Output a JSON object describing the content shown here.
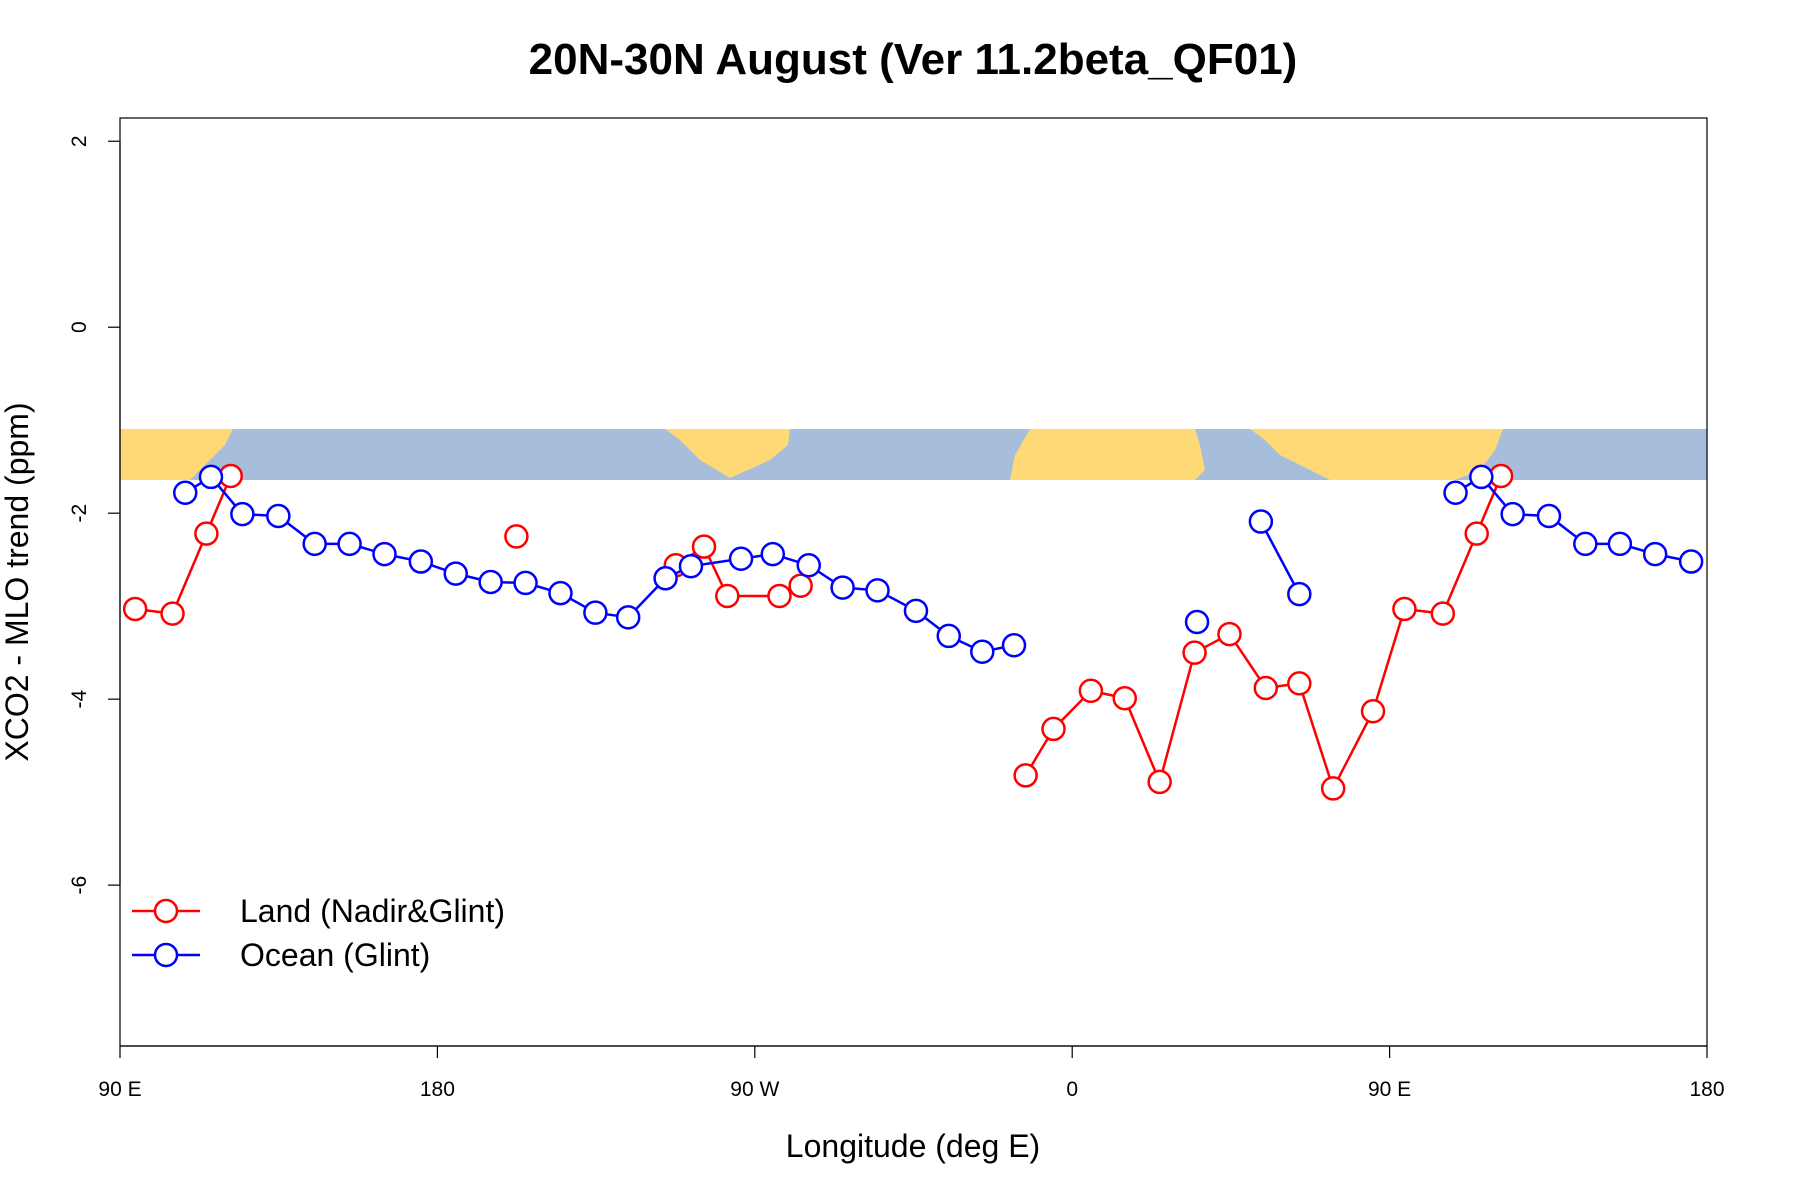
{
  "chart_data": {
    "type": "line",
    "title": "20N-30N August (Ver 11.2beta_QF01)",
    "xlabel": "Longitude (deg E)",
    "ylabel": "XCO2 - MLO trend (ppm)",
    "xlim": [
      90,
      540
    ],
    "ylim": [
      -7.73,
      2.25
    ],
    "xticks": [
      {
        "value": 90,
        "label": "90 E"
      },
      180,
      {
        "value": 270,
        "label": "90 W"
      },
      {
        "value": 360,
        "label": "0"
      },
      {
        "value": 450,
        "label": "90 E"
      },
      {
        "value": 540,
        "label": "180"
      }
    ],
    "yticks": [
      -6,
      -4,
      -2,
      0,
      2
    ],
    "legend": "bottom-left",
    "series": [
      {
        "name": "Land (Nadir&Glint)",
        "color": "#ff0000",
        "x": [
          94.3,
          104.9,
          114.5,
          121.4,
          null,
          202.4,
          null,
          247.6,
          255.6,
          262.2,
          277.0,
          283.0,
          null,
          346.8,
          354.7,
          365.3,
          374.9,
          384.8,
          394.7,
          404.6,
          414.9,
          424.4,
          434.0,
          445.3,
          454.2,
          465.1,
          474.7,
          481.6
        ],
        "values": [
          -3.03,
          -3.08,
          -2.22,
          -1.6,
          null,
          -2.25,
          null,
          -2.56,
          -2.36,
          -2.89,
          -2.89,
          -2.78,
          null,
          -4.82,
          -4.32,
          -3.91,
          -3.99,
          -4.89,
          -3.5,
          -3.3,
          -3.88,
          -3.83,
          -4.96,
          -4.13,
          -3.03,
          -3.08,
          -2.22,
          -1.6
        ]
      },
      {
        "name": "Ocean (Glint)",
        "color": "#0000ff",
        "x": [
          108.5,
          115.8,
          124.7,
          134.9,
          145.2,
          155.1,
          165.0,
          175.3,
          185.2,
          195.1,
          205.0,
          214.9,
          224.8,
          234.1,
          244.7,
          251.9,
          266.1,
          275.1,
          285.3,
          294.9,
          304.8,
          315.7,
          325.0,
          334.5,
          343.5,
          null,
          395.4,
          null,
          413.5,
          424.4,
          null,
          468.7,
          476.0,
          484.9,
          495.2,
          505.5,
          515.3,
          525.3,
          535.5
        ],
        "values": [
          -1.78,
          -1.61,
          -2.01,
          -2.03,
          -2.33,
          -2.33,
          -2.44,
          -2.52,
          -2.65,
          -2.74,
          -2.75,
          -2.86,
          -3.07,
          -3.12,
          -2.7,
          -2.57,
          -2.49,
          -2.44,
          -2.56,
          -2.8,
          -2.83,
          -3.05,
          -3.32,
          -3.49,
          -3.42,
          null,
          -3.17,
          null,
          -2.09,
          -2.87,
          null,
          -1.78,
          -1.61,
          -2.01,
          -2.03,
          -2.33,
          -2.33,
          -2.44,
          -2.52
        ]
      }
    ]
  }
}
